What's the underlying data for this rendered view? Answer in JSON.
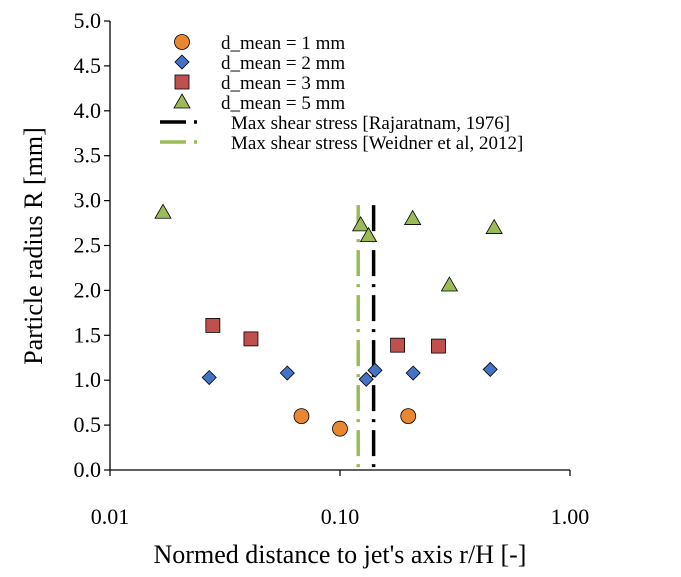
{
  "chart_data": {
    "type": "scatter",
    "xlabel": "Normed distance to jet's axis r/H  [-]",
    "ylabel": "Particle radius R  [mm]",
    "x_scale": "log",
    "xlim": [
      0.01,
      1.0
    ],
    "ylim": [
      0.0,
      5.0
    ],
    "x_ticks": [
      0.01,
      0.1,
      1.0
    ],
    "x_tick_labels": [
      "0.01",
      "0.10",
      "1.00"
    ],
    "y_ticks": [
      0.0,
      0.5,
      1.0,
      1.5,
      2.0,
      2.5,
      3.0,
      3.5,
      4.0,
      4.5,
      5.0
    ],
    "y_tick_labels": [
      "0.0",
      "0.5",
      "1.0",
      "1.5",
      "2.0",
      "2.5",
      "3.0",
      "3.5",
      "4.0",
      "4.5",
      "5.0"
    ],
    "grid": false,
    "legend_position": "top-left",
    "series": [
      {
        "name": "d_mean = 1 mm",
        "marker": "circle",
        "color": "#E8872F",
        "points": [
          [
            0.068,
            0.6
          ],
          [
            0.1,
            0.46
          ],
          [
            0.198,
            0.6
          ]
        ]
      },
      {
        "name": "d_mean = 2 mm",
        "marker": "diamond",
        "color": "#4472C4",
        "points": [
          [
            0.027,
            1.03
          ],
          [
            0.059,
            1.08
          ],
          [
            0.13,
            1.01
          ],
          [
            0.142,
            1.11
          ],
          [
            0.208,
            1.08
          ],
          [
            0.45,
            1.12
          ]
        ]
      },
      {
        "name": "d_mean = 3 mm",
        "marker": "square",
        "color": "#C0504D",
        "points": [
          [
            0.028,
            1.61
          ],
          [
            0.041,
            1.46
          ],
          [
            0.178,
            1.39
          ],
          [
            0.268,
            1.38
          ]
        ]
      },
      {
        "name": "d_mean = 5 mm",
        "marker": "triangle",
        "color": "#9BBB59",
        "points": [
          [
            0.017,
            2.87
          ],
          [
            0.123,
            2.73
          ],
          [
            0.133,
            2.61
          ],
          [
            0.207,
            2.8
          ],
          [
            0.299,
            2.06
          ],
          [
            0.468,
            2.7
          ]
        ]
      }
    ],
    "reference_lines": [
      {
        "name": "Max shear stress [Rajaratnam, 1976]",
        "x": 0.14,
        "color": "#000000"
      },
      {
        "name": "Max shear stress [Weidner et al, 2012]",
        "x": 0.12,
        "color": "#9BBB59"
      }
    ]
  }
}
